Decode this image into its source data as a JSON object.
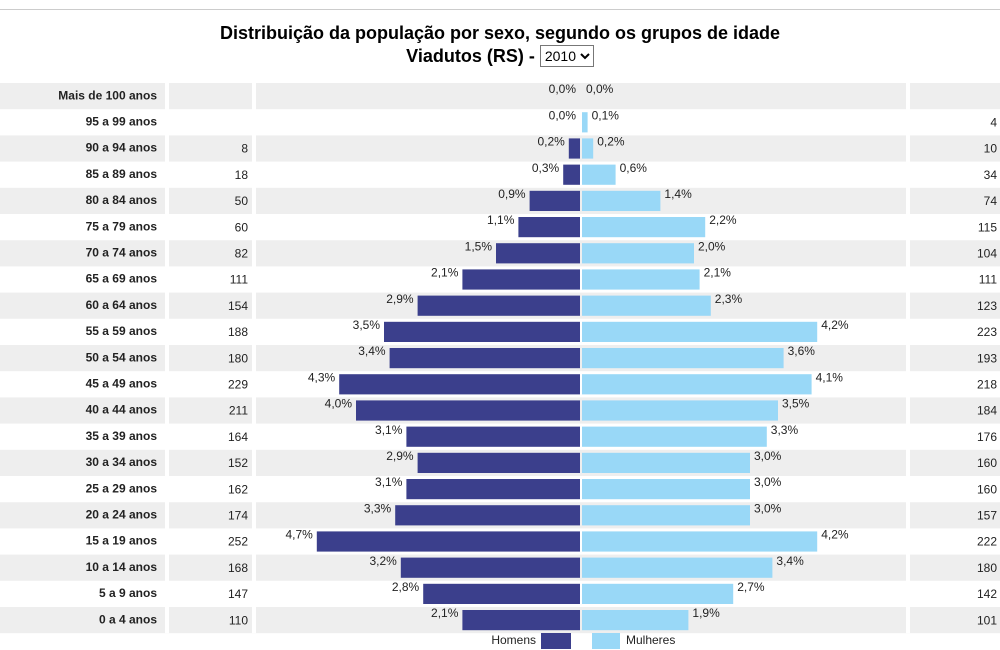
{
  "chart_data": {
    "type": "pyramid",
    "title": "Distribuição da população por sexo, segundo os grupos de idade",
    "subtitle": "Viadutos (RS) - ",
    "year": "2010",
    "categories": [
      "Mais de 100 anos",
      "95 a 99 anos",
      "90 a 94 anos",
      "85 a 89 anos",
      "80 a 84 anos",
      "75 a 79 anos",
      "70 a 74 anos",
      "65 a 69 anos",
      "60 a 64 anos",
      "55 a 59 anos",
      "50 a 54 anos",
      "45 a 49 anos",
      "40 a 44 anos",
      "35 a 39 anos",
      "30 a 34 anos",
      "25 a 29 anos",
      "20 a 24 anos",
      "15 a 19 anos",
      "10 a 14 anos",
      "5 a 9 anos",
      "0 a 4 anos"
    ],
    "series": [
      {
        "name": "Homens",
        "color": "#3b3f8c",
        "values": [
          0.0,
          0.0,
          0.2,
          0.3,
          0.9,
          1.1,
          1.5,
          2.1,
          2.9,
          3.5,
          3.4,
          4.3,
          4.0,
          3.1,
          2.9,
          3.1,
          3.3,
          4.7,
          3.2,
          2.8,
          2.1
        ],
        "value_labels": [
          "0,0%",
          "0,0%",
          "0,2%",
          "0,3%",
          "0,9%",
          "1,1%",
          "1,5%",
          "2,1%",
          "2,9%",
          "3,5%",
          "3,4%",
          "4,3%",
          "4,0%",
          "3,1%",
          "2,9%",
          "3,1%",
          "3,3%",
          "4,7%",
          "3,2%",
          "2,8%",
          "2,1%"
        ],
        "counts": [
          null,
          null,
          8,
          18,
          50,
          60,
          82,
          111,
          154,
          188,
          180,
          229,
          211,
          164,
          152,
          162,
          174,
          252,
          168,
          147,
          110
        ]
      },
      {
        "name": "Mulheres",
        "color": "#99d8f7",
        "values": [
          0.0,
          0.1,
          0.2,
          0.6,
          1.4,
          2.2,
          2.0,
          2.1,
          2.3,
          4.2,
          3.6,
          4.1,
          3.5,
          3.3,
          3.0,
          3.0,
          3.0,
          4.2,
          3.4,
          2.7,
          1.9
        ],
        "value_labels": [
          "0,0%",
          "0,1%",
          "0,2%",
          "0,6%",
          "1,4%",
          "2,2%",
          "2,0%",
          "2,1%",
          "2,3%",
          "4,2%",
          "3,6%",
          "4,1%",
          "3,5%",
          "3,3%",
          "3,0%",
          "3,0%",
          "3,0%",
          "4,2%",
          "3,4%",
          "2,7%",
          "1,9%"
        ],
        "counts": [
          null,
          4,
          10,
          34,
          74,
          115,
          104,
          111,
          123,
          223,
          193,
          218,
          184,
          176,
          160,
          160,
          157,
          222,
          180,
          142,
          101
        ]
      }
    ]
  }
}
